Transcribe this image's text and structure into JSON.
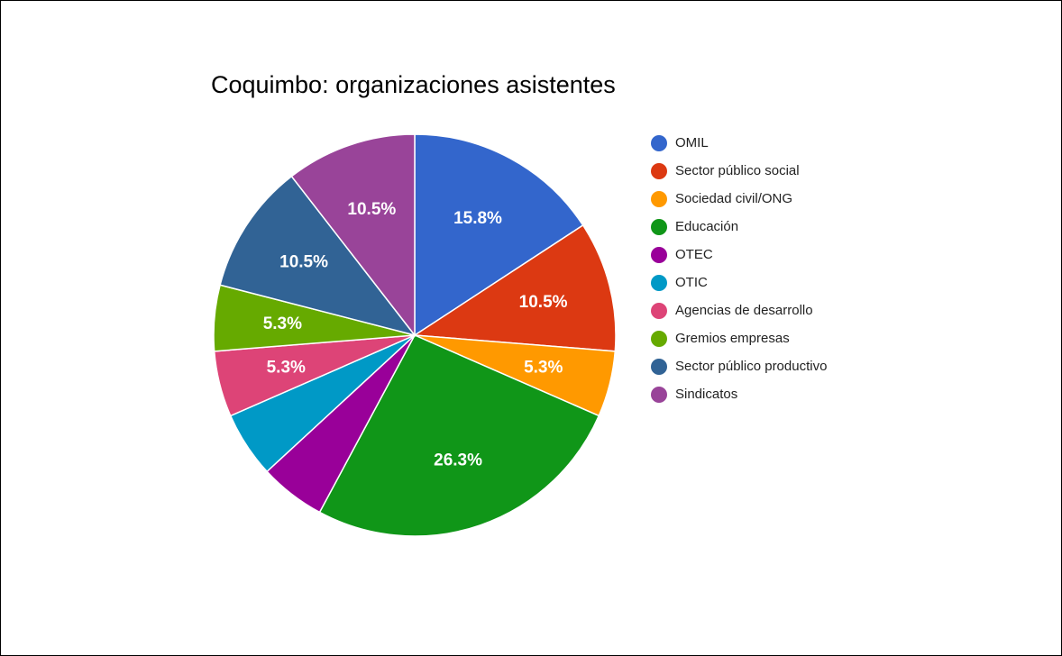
{
  "chart_data": {
    "type": "pie",
    "title": "Coquimbo: organizaciones asistentes",
    "legend_position": "right",
    "slices": [
      {
        "name": "OMIL",
        "value": 15.8,
        "label": "15.8%",
        "color": "#3366cc"
      },
      {
        "name": "Sector público social",
        "value": 10.5,
        "label": "10.5%",
        "color": "#dc3912"
      },
      {
        "name": "Sociedad civil/ONG",
        "value": 5.3,
        "label": "5.3%",
        "color": "#ff9900"
      },
      {
        "name": "Educación",
        "value": 26.3,
        "label": "26.3%",
        "color": "#109618"
      },
      {
        "name": "OTEC",
        "value": 5.3,
        "label": "",
        "color": "#990099"
      },
      {
        "name": "OTIC",
        "value": 5.3,
        "label": "",
        "color": "#0099c6"
      },
      {
        "name": "Agencias de desarrollo",
        "value": 5.3,
        "label": "5.3%",
        "color": "#dd4477"
      },
      {
        "name": "Gremios empresas",
        "value": 5.3,
        "label": "5.3%",
        "color": "#66aa00"
      },
      {
        "name": "Sector público productivo",
        "value": 10.5,
        "label": "10.5%",
        "color": "#316395"
      },
      {
        "name": "Sindicatos",
        "value": 10.5,
        "label": "10.5%",
        "color": "#994499"
      }
    ]
  }
}
